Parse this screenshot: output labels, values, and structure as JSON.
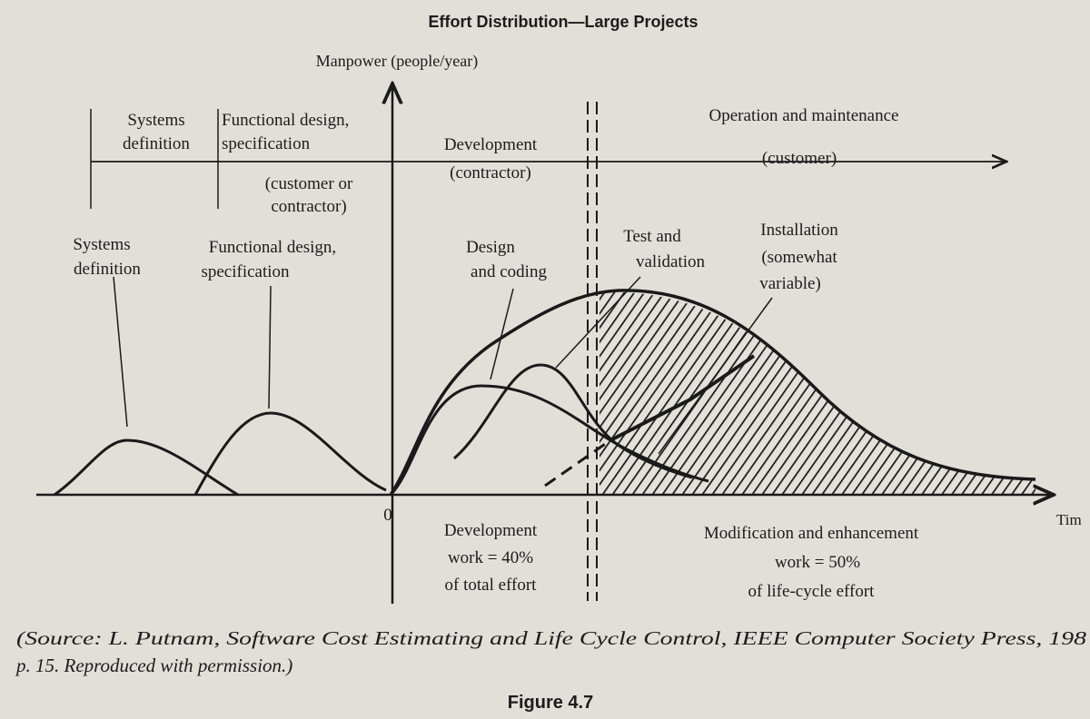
{
  "title": "Effort Distribution—Large Projects",
  "y_axis_label": "Manpower (people/year)",
  "x_axis_label": "Tim",
  "origin": "0",
  "phases": [
    {
      "lines": [
        "Systems",
        "definition"
      ]
    },
    {
      "lines": [
        "Functional design,",
        "specification"
      ],
      "note": [
        "(customer or",
        "contractor)"
      ]
    },
    {
      "lines": [
        "Development",
        "(contractor)"
      ]
    },
    {
      "lines": [
        "Operation and maintenance",
        "(customer)"
      ]
    }
  ],
  "curves": [
    {
      "lines": [
        "Systems",
        "definition"
      ]
    },
    {
      "lines": [
        "Functional design,",
        "specification"
      ]
    },
    {
      "lines": [
        "Design",
        "and coding"
      ]
    },
    {
      "lines": [
        "Test and",
        "validation"
      ]
    },
    {
      "lines": [
        "Installation",
        "(somewhat",
        "variable)"
      ]
    }
  ],
  "work_notes": [
    {
      "lines": [
        "Development",
        "work = 40%",
        "of total effort"
      ]
    },
    {
      "lines": [
        "Modification and enhancement",
        "work = 50%",
        "of life-cycle effort"
      ]
    }
  ],
  "source": [
    "(Source: L. Putnam, Software Cost Estimating and Life Cycle Control, IEEE Computer Society Press, 198",
    "p. 15. Reproduced with permission.)"
  ],
  "figure": "Figure 4.7"
}
